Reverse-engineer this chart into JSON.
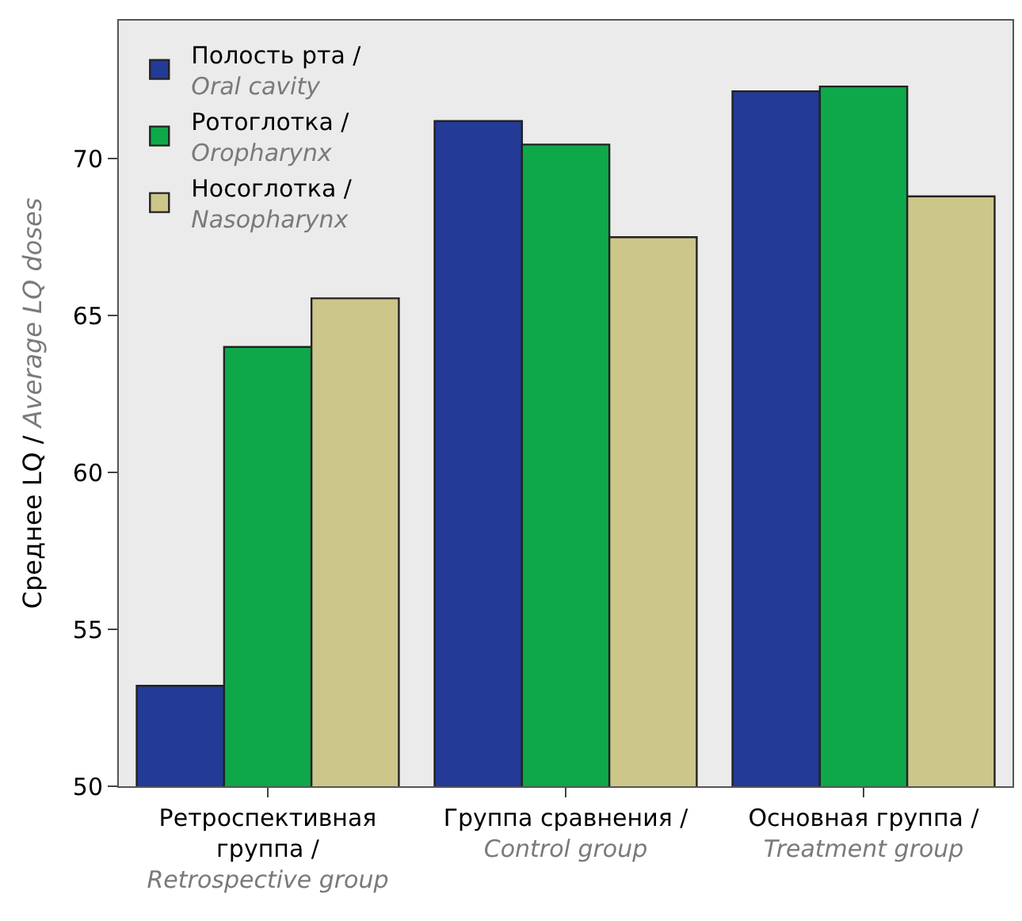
{
  "chart_data": {
    "type": "bar",
    "ylabel": "Среднее LQ / Average LQ doses",
    "categories": [
      "Ретроспективная группа / Retrospective group",
      "Группа сравнения / Control group",
      "Основная группа / Treatment group"
    ],
    "series": [
      {
        "name": "Полость рта / Oral cavity",
        "color": "#233a96",
        "values": [
          53.2,
          71.2,
          72.15
        ]
      },
      {
        "name": "Ротоглотка / Oropharynx",
        "color": "#0ea84a",
        "values": [
          64.0,
          70.45,
          72.3
        ]
      },
      {
        "name": "Носоглотка / Nasopharynx",
        "color": "#cdc68a",
        "values": [
          65.55,
          67.5,
          68.8
        ]
      }
    ],
    "ylim": [
      50,
      74.4
    ],
    "yticks": [
      50,
      55,
      60,
      65,
      70
    ],
    "grid": false,
    "legend": "top left"
  }
}
